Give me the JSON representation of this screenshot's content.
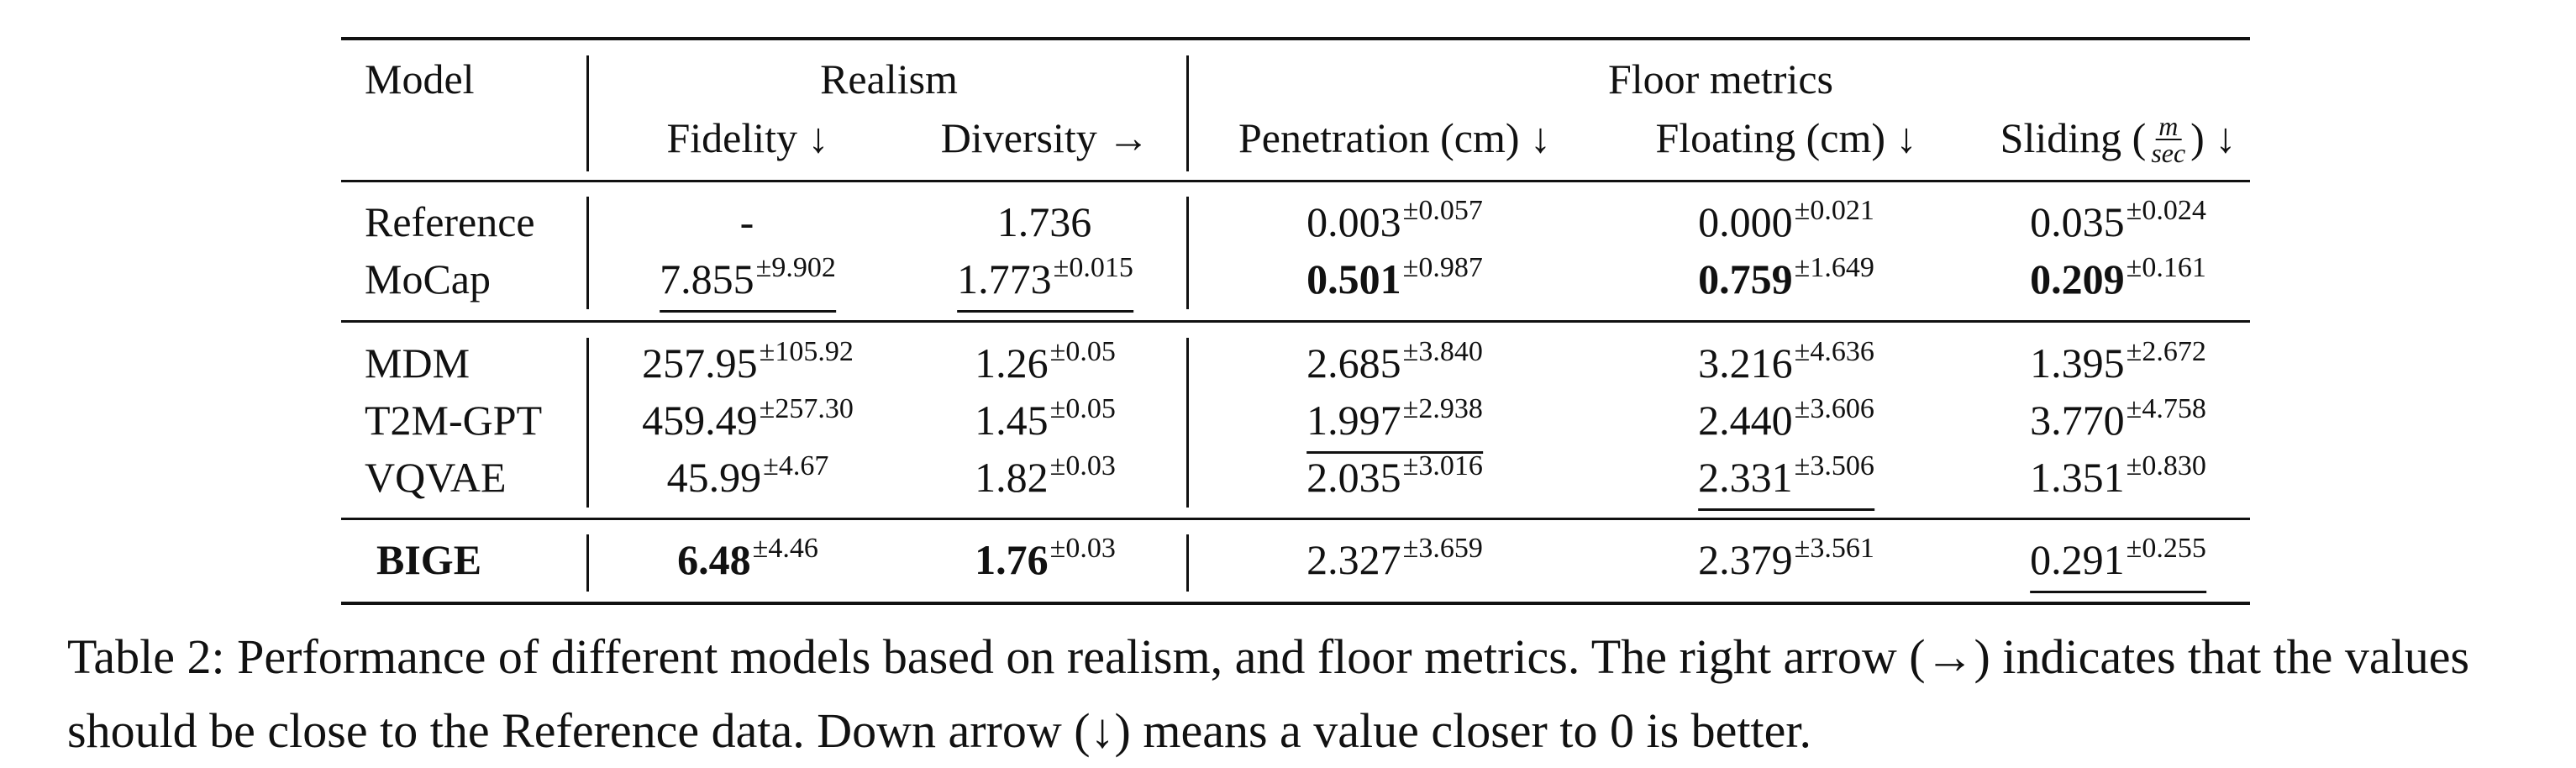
{
  "table": {
    "header": {
      "model": "Model",
      "realism": "Realism",
      "floor_metrics": "Floor metrics",
      "fidelity": "Fidelity ↓",
      "diversity": "Diversity →",
      "penetration": "Penetration (cm) ↓",
      "floating": "Floating (cm) ↓",
      "sliding_pre": "Sliding (",
      "sliding_num": "m",
      "sliding_den": "sec",
      "sliding_post": ") ↓"
    },
    "rows": [
      {
        "model": "Reference",
        "fidelity": {
          "v": "-",
          "pm": ""
        },
        "diversity": {
          "v": "1.736",
          "pm": ""
        },
        "penetration": {
          "v": "0.003",
          "pm": "±0.057"
        },
        "floating": {
          "v": "0.000",
          "pm": "±0.021"
        },
        "sliding": {
          "v": "0.035",
          "pm": "±0.024"
        }
      },
      {
        "model": "MoCap",
        "fidelity": {
          "v": "7.855",
          "pm": "±9.902"
        },
        "diversity": {
          "v": "1.773",
          "pm": "±0.015"
        },
        "penetration": {
          "v": "0.501",
          "pm": "±0.987"
        },
        "floating": {
          "v": "0.759",
          "pm": "±1.649"
        },
        "sliding": {
          "v": "0.209",
          "pm": "±0.161"
        }
      },
      {
        "model": "MDM",
        "fidelity": {
          "v": "257.95",
          "pm": "±105.92"
        },
        "diversity": {
          "v": "1.26",
          "pm": "±0.05"
        },
        "penetration": {
          "v": "2.685",
          "pm": "±3.840"
        },
        "floating": {
          "v": "3.216",
          "pm": "±4.636"
        },
        "sliding": {
          "v": "1.395",
          "pm": "±2.672"
        }
      },
      {
        "model": "T2M-GPT",
        "fidelity": {
          "v": "459.49",
          "pm": "±257.30"
        },
        "diversity": {
          "v": "1.45",
          "pm": "±0.05"
        },
        "penetration": {
          "v": "1.997",
          "pm": "±2.938"
        },
        "floating": {
          "v": "2.440",
          "pm": "±3.606"
        },
        "sliding": {
          "v": "3.770",
          "pm": "±4.758"
        }
      },
      {
        "model": "VQVAE",
        "fidelity": {
          "v": "45.99",
          "pm": "±4.67"
        },
        "diversity": {
          "v": "1.82",
          "pm": "±0.03"
        },
        "penetration": {
          "v": "2.035",
          "pm": "±3.016"
        },
        "floating": {
          "v": "2.331",
          "pm": "±3.506"
        },
        "sliding": {
          "v": "1.351",
          "pm": "±0.830"
        }
      },
      {
        "model": "BIGE",
        "fidelity": {
          "v": "6.48",
          "pm": "±4.46"
        },
        "diversity": {
          "v": "1.76",
          "pm": "±0.03"
        },
        "penetration": {
          "v": "2.327",
          "pm": "±3.659"
        },
        "floating": {
          "v": "2.379",
          "pm": "±3.561"
        },
        "sliding": {
          "v": "0.291",
          "pm": "±0.255"
        }
      }
    ]
  },
  "caption": "Table 2: Performance of different models based on realism, and floor metrics. The right arrow (→) indicates that the values should be close to the Reference data. Down arrow (↓) means a value closer to 0 is better."
}
